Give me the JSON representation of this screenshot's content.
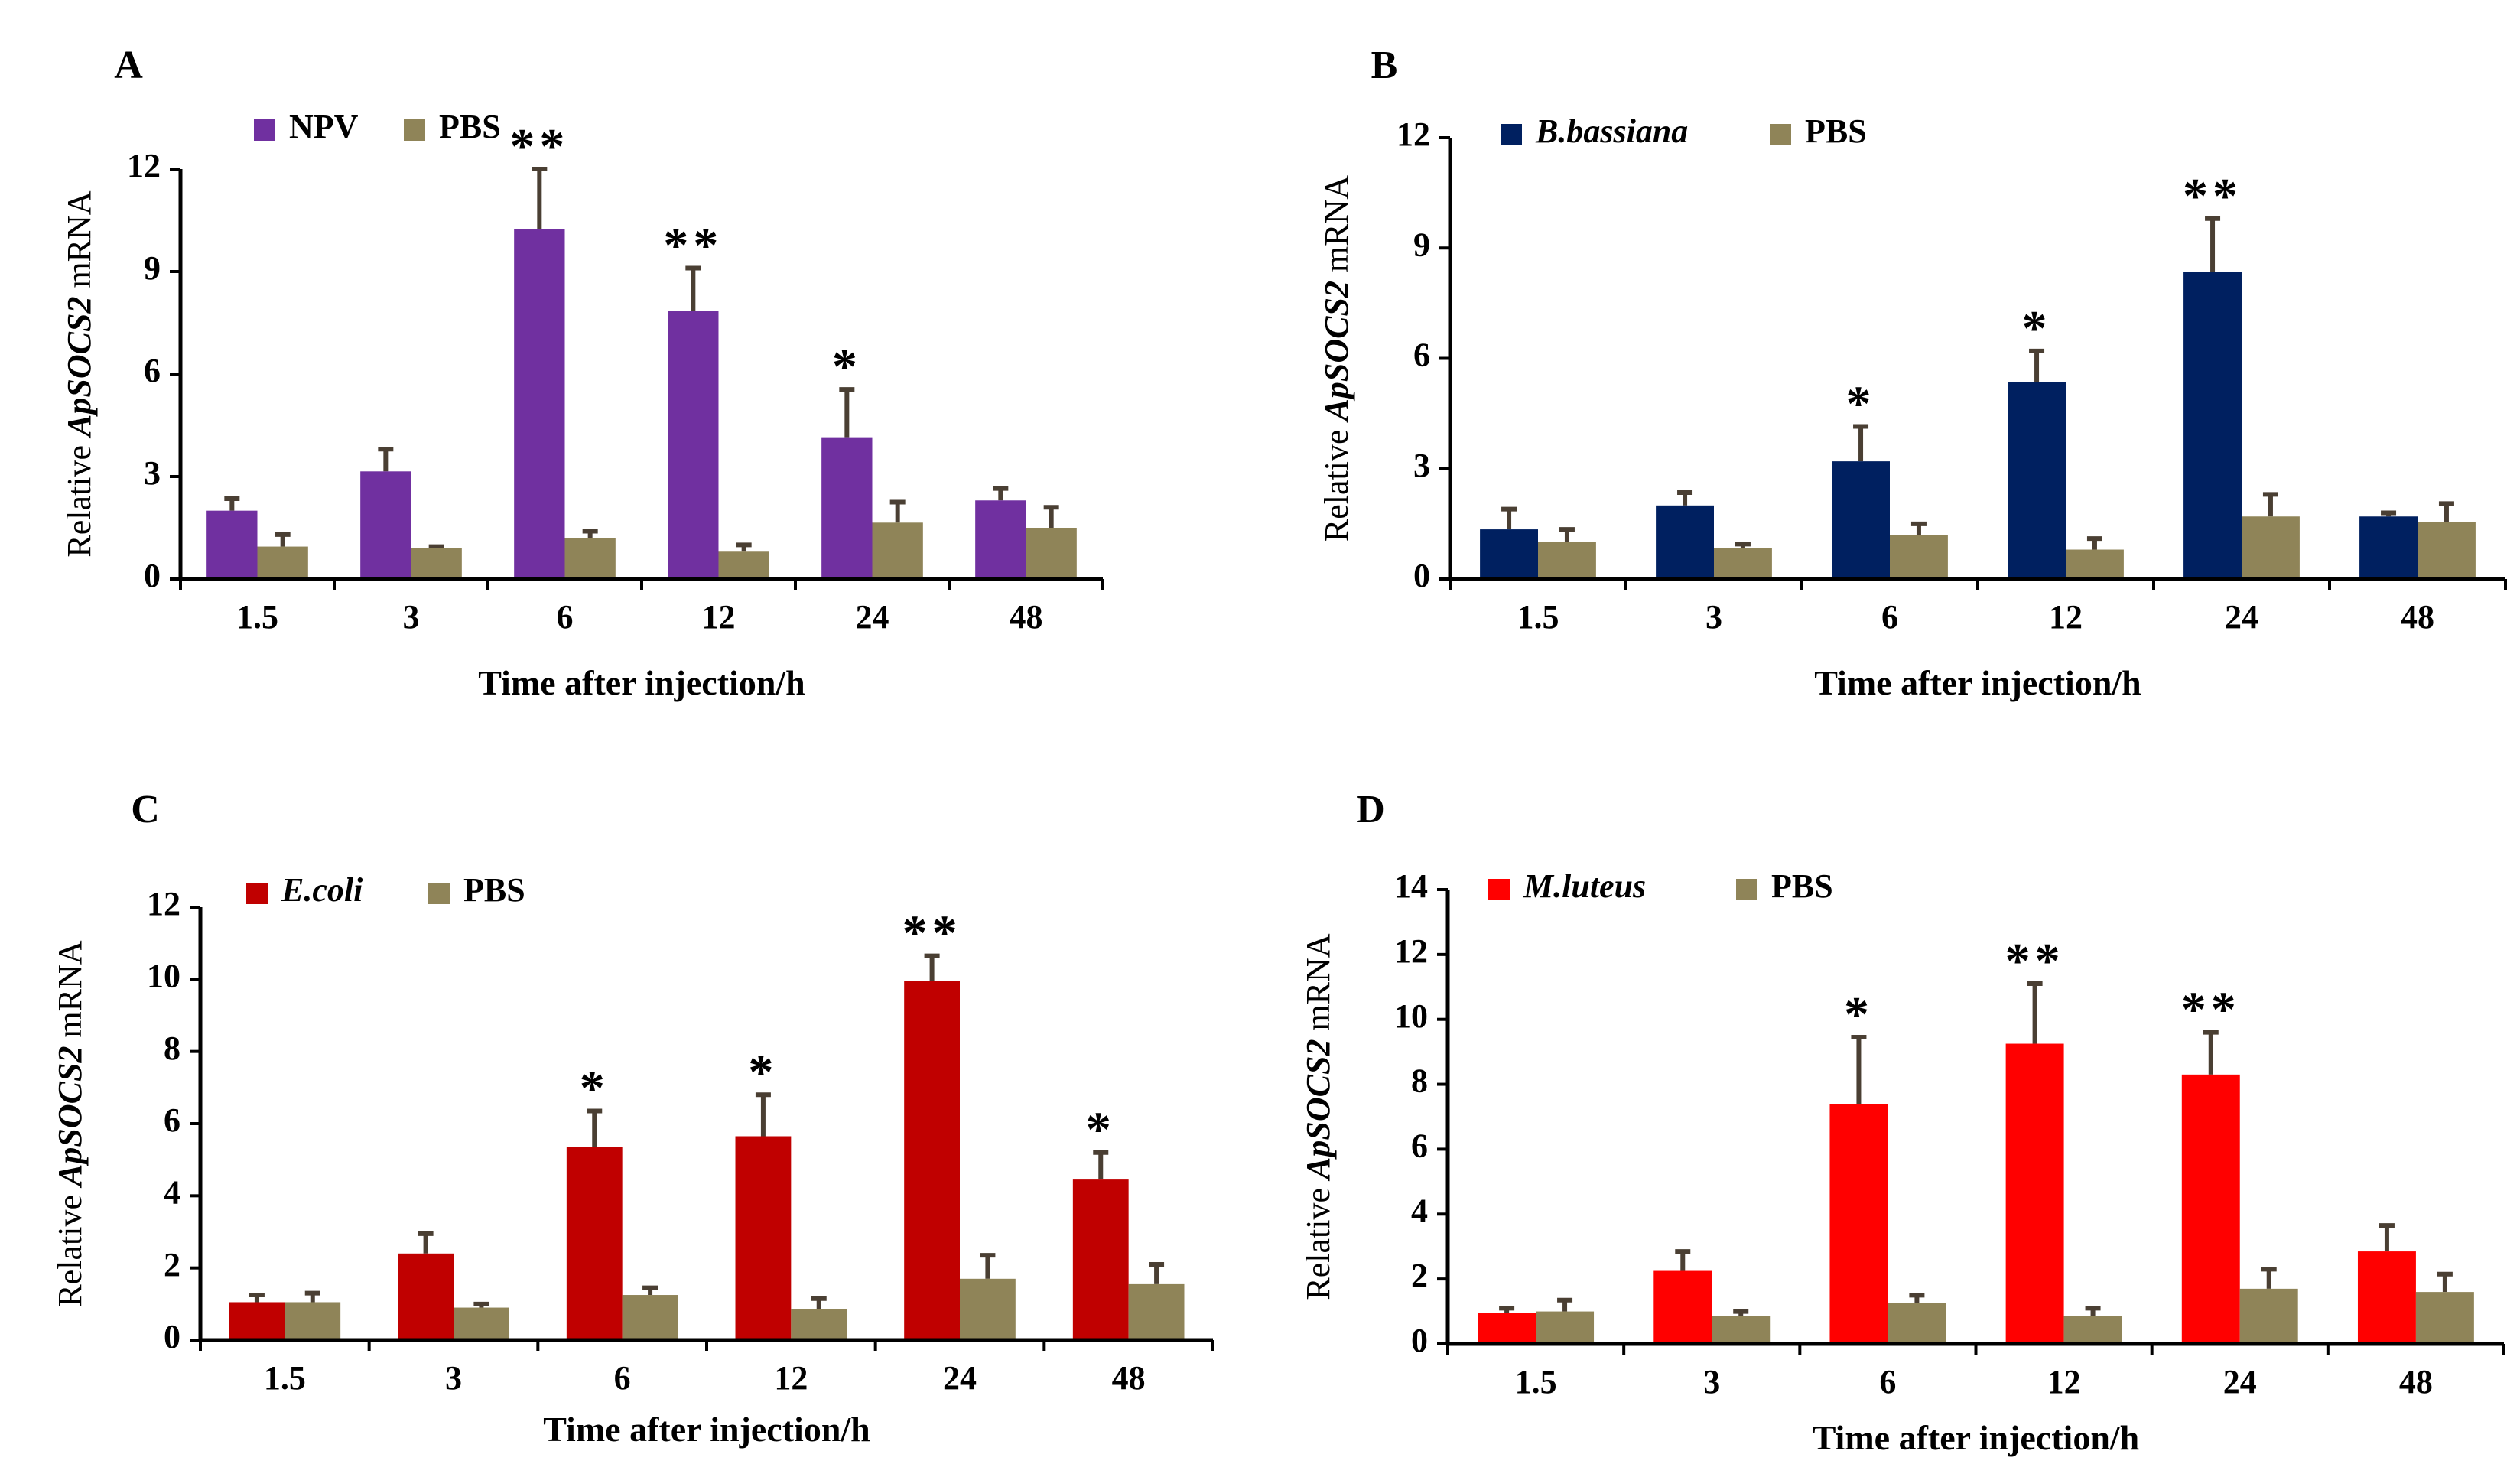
{
  "figure": {
    "colors": {
      "control": "#8f8458",
      "error": "#4a3f33",
      "axis": "#000000"
    },
    "xlabel": "Time after injection/h",
    "ylabel_prefix": "Relative ",
    "ylabel_gene": "ApSOCS2",
    "ylabel_suffix": " mRNA"
  },
  "chart_data": [
    {
      "panel": "A",
      "type": "bar",
      "categories": [
        "1.5",
        "3",
        "6",
        "12",
        "24",
        "48"
      ],
      "ylim": [
        0,
        12
      ],
      "yticks": [
        "0",
        "3",
        "6",
        "9",
        "12"
      ],
      "series": [
        {
          "name": "NPV",
          "italic": false,
          "color": "#7030a0",
          "values": [
            2.0,
            3.15,
            10.25,
            7.85,
            4.15,
            2.3
          ],
          "errors": [
            0.35,
            0.65,
            1.75,
            1.25,
            1.4,
            0.35
          ]
        },
        {
          "name": "PBS",
          "italic": false,
          "color": "#8f8458",
          "values": [
            0.95,
            0.9,
            1.2,
            0.8,
            1.65,
            1.5
          ],
          "errors": [
            0.35,
            0.05,
            0.2,
            0.2,
            0.6,
            0.6
          ]
        }
      ],
      "significance": [
        "",
        "",
        "**",
        "**",
        "*",
        ""
      ]
    },
    {
      "panel": "B",
      "type": "bar",
      "categories": [
        "1.5",
        "3",
        "6",
        "12",
        "24",
        "48"
      ],
      "ylim": [
        0,
        12
      ],
      "yticks": [
        "0",
        "3",
        "6",
        "9",
        "12"
      ],
      "series": [
        {
          "name": "B.bassiana",
          "italic": true,
          "color": "#002060",
          "values": [
            1.35,
            2.0,
            3.2,
            5.35,
            8.35,
            1.7
          ],
          "errors": [
            0.55,
            0.35,
            0.95,
            0.85,
            1.45,
            0.1
          ]
        },
        {
          "name": "PBS",
          "italic": false,
          "color": "#8f8458",
          "values": [
            1.0,
            0.85,
            1.2,
            0.8,
            1.7,
            1.55
          ],
          "errors": [
            0.35,
            0.1,
            0.3,
            0.3,
            0.6,
            0.5
          ]
        }
      ],
      "significance": [
        "",
        "",
        "*",
        "*",
        "**",
        ""
      ]
    },
    {
      "panel": "C",
      "type": "bar",
      "categories": [
        "1.5",
        "3",
        "6",
        "12",
        "24",
        "48"
      ],
      "ylim": [
        0,
        12
      ],
      "yticks": [
        "0",
        "2",
        "4",
        "6",
        "8",
        "10",
        "12"
      ],
      "series": [
        {
          "name": "E.coli",
          "italic": true,
          "color": "#c00000",
          "values": [
            1.05,
            2.4,
            5.35,
            5.65,
            9.95,
            4.45
          ],
          "errors": [
            0.2,
            0.55,
            1.0,
            1.15,
            0.7,
            0.75
          ]
        },
        {
          "name": "PBS",
          "italic": false,
          "color": "#8f8458",
          "values": [
            1.05,
            0.9,
            1.25,
            0.85,
            1.7,
            1.55
          ],
          "errors": [
            0.25,
            0.1,
            0.2,
            0.3,
            0.65,
            0.55
          ]
        }
      ],
      "significance": [
        "",
        "",
        "*",
        "*",
        "**",
        "*"
      ]
    },
    {
      "panel": "D",
      "type": "bar",
      "categories": [
        "1.5",
        "3",
        "6",
        "12",
        "24",
        "48"
      ],
      "ylim": [
        0,
        14
      ],
      "yticks": [
        "0",
        "2",
        "4",
        "6",
        "8",
        "10",
        "12",
        "14"
      ],
      "series": [
        {
          "name": "M.luteus",
          "italic": true,
          "color": "#ff0000",
          "values": [
            0.95,
            2.25,
            7.4,
            9.25,
            8.3,
            2.85
          ],
          "errors": [
            0.15,
            0.6,
            2.05,
            1.85,
            1.3,
            0.8
          ]
        },
        {
          "name": "PBS",
          "italic": false,
          "color": "#8f8458",
          "values": [
            1.0,
            0.85,
            1.25,
            0.85,
            1.7,
            1.6
          ],
          "errors": [
            0.35,
            0.15,
            0.25,
            0.25,
            0.6,
            0.55
          ]
        }
      ],
      "significance": [
        "",
        "",
        "*",
        "**",
        "**",
        ""
      ]
    }
  ]
}
